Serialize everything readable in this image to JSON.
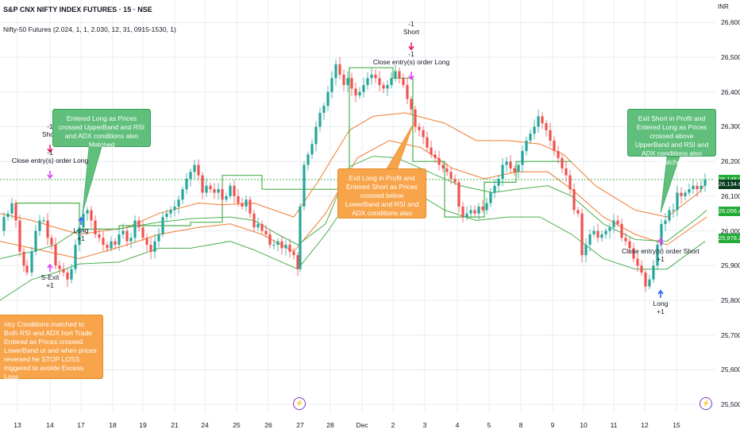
{
  "header": {
    "title": "S&P CNX NIFTY INDEX FUTURES · 15 · NSE",
    "indicator": "Nifty-50 Futures (2.024, 1, 1, 2.030, 12, 31, 0915-1530, 1)",
    "currency": "INR"
  },
  "chart_data": {
    "type": "candlestick",
    "y_axis": {
      "ticks": [
        "26,600.00",
        "26,500.00",
        "26,400.00",
        "26,300.00",
        "26,200.00",
        "26,100.00",
        "26,000.00",
        "25,900.00",
        "25,800.00",
        "25,700.00",
        "25,600.00",
        "25,500.00"
      ],
      "ylim": [
        25475,
        26665
      ]
    },
    "x_axis": {
      "ticks": [
        "13",
        "14",
        "17",
        "18",
        "19",
        "21",
        "24",
        "25",
        "26",
        "27",
        "28",
        "Dec",
        "2",
        "3",
        "4",
        "5",
        "8",
        "9",
        "10",
        "11",
        "12",
        "15"
      ]
    },
    "price_labels": [
      "26,148.00",
      "26,134.66",
      "26,056.45",
      "25,978.24"
    ],
    "price_series": [
      [
        0,
        26000
      ],
      [
        5,
        26040
      ],
      [
        10,
        26050
      ],
      [
        15,
        26080
      ],
      [
        20,
        26030
      ],
      [
        25,
        25940
      ],
      [
        30,
        25900
      ],
      [
        34,
        25880
      ],
      [
        40,
        25940
      ],
      [
        45,
        26000
      ],
      [
        50,
        26030
      ],
      [
        55,
        26030
      ],
      [
        60,
        25980
      ],
      [
        65,
        25960
      ],
      [
        70,
        25900
      ],
      [
        75,
        25890
      ],
      [
        80,
        25880
      ],
      [
        85,
        25860
      ],
      [
        90,
        25890
      ],
      [
        95,
        25960
      ],
      [
        100,
        26010
      ],
      [
        105,
        26050
      ],
      [
        110,
        26060
      ],
      [
        115,
        26030
      ],
      [
        120,
        25990
      ],
      [
        125,
        25980
      ],
      [
        130,
        25960
      ],
      [
        135,
        25950
      ],
      [
        140,
        25970
      ],
      [
        145,
        25960
      ],
      [
        150,
        25990
      ],
      [
        155,
        26000
      ],
      [
        160,
        25970
      ],
      [
        165,
        25980
      ],
      [
        170,
        26030
      ],
      [
        175,
        26010
      ],
      [
        180,
        25980
      ],
      [
        185,
        25960
      ],
      [
        190,
        25940
      ],
      [
        195,
        25970
      ],
      [
        200,
        25990
      ],
      [
        205,
        26040
      ],
      [
        210,
        26050
      ],
      [
        215,
        26060
      ],
      [
        220,
        26070
      ],
      [
        225,
        26090
      ],
      [
        230,
        26120
      ],
      [
        235,
        26150
      ],
      [
        240,
        26170
      ],
      [
        245,
        26190
      ],
      [
        250,
        26160
      ],
      [
        255,
        26110
      ],
      [
        260,
        26130
      ],
      [
        265,
        26120
      ],
      [
        270,
        26110
      ],
      [
        275,
        26120
      ],
      [
        280,
        26090
      ],
      [
        285,
        26100
      ],
      [
        290,
        26130
      ],
      [
        295,
        26100
      ],
      [
        300,
        26080
      ],
      [
        305,
        26070
      ],
      [
        310,
        26090
      ],
      [
        315,
        26050
      ],
      [
        320,
        26010
      ],
      [
        325,
        26020
      ],
      [
        330,
        26000
      ],
      [
        335,
        25990
      ],
      [
        340,
        25960
      ],
      [
        345,
        25960
      ],
      [
        350,
        25970
      ],
      [
        355,
        25950
      ],
      [
        360,
        25960
      ],
      [
        365,
        25940
      ],
      [
        370,
        25930
      ],
      [
        375,
        25890
      ],
      [
        378,
        26070
      ],
      [
        383,
        26190
      ],
      [
        388,
        26220
      ],
      [
        393,
        26250
      ],
      [
        398,
        26300
      ],
      [
        403,
        26340
      ],
      [
        408,
        26360
      ],
      [
        413,
        26400
      ],
      [
        418,
        26440
      ],
      [
        423,
        26480
      ],
      [
        428,
        26450
      ],
      [
        433,
        26420
      ],
      [
        438,
        26440
      ],
      [
        443,
        26410
      ],
      [
        448,
        26390
      ],
      [
        453,
        26400
      ],
      [
        458,
        26420
      ],
      [
        463,
        26440
      ],
      [
        468,
        26450
      ],
      [
        473,
        26440
      ],
      [
        478,
        26420
      ],
      [
        483,
        26410
      ],
      [
        488,
        26420
      ],
      [
        493,
        26440
      ],
      [
        498,
        26460
      ],
      [
        503,
        26440
      ],
      [
        508,
        26420
      ],
      [
        513,
        26380
      ],
      [
        518,
        26350
      ],
      [
        523,
        26300
      ],
      [
        528,
        26290
      ],
      [
        533,
        26270
      ],
      [
        538,
        26240
      ],
      [
        543,
        26220
      ],
      [
        548,
        26210
      ],
      [
        553,
        26190
      ],
      [
        558,
        26180
      ],
      [
        563,
        26170
      ],
      [
        568,
        26150
      ],
      [
        573,
        26140
      ],
      [
        578,
        26070
      ],
      [
        583,
        26040
      ],
      [
        588,
        26050
      ],
      [
        593,
        26060
      ],
      [
        598,
        26050
      ],
      [
        603,
        26070
      ],
      [
        608,
        26060
      ],
      [
        613,
        26080
      ],
      [
        618,
        26110
      ],
      [
        623,
        26130
      ],
      [
        628,
        26150
      ],
      [
        633,
        26190
      ],
      [
        638,
        26200
      ],
      [
        643,
        26180
      ],
      [
        648,
        26170
      ],
      [
        653,
        26190
      ],
      [
        658,
        26230
      ],
      [
        663,
        26260
      ],
      [
        668,
        26280
      ],
      [
        673,
        26300
      ],
      [
        678,
        26330
      ],
      [
        683,
        26310
      ],
      [
        688,
        26290
      ],
      [
        693,
        26260
      ],
      [
        698,
        26230
      ],
      [
        703,
        26210
      ],
      [
        708,
        26180
      ],
      [
        713,
        26160
      ],
      [
        718,
        26120
      ],
      [
        723,
        26060
      ],
      [
        728,
        26050
      ],
      [
        733,
        25930
      ],
      [
        738,
        25960
      ],
      [
        743,
        25990
      ],
      [
        748,
        26000
      ],
      [
        753,
        25980
      ],
      [
        758,
        25990
      ],
      [
        763,
        26000
      ],
      [
        768,
        26010
      ],
      [
        773,
        26030
      ],
      [
        778,
        26020
      ],
      [
        783,
        25980
      ],
      [
        788,
        25970
      ],
      [
        793,
        25950
      ],
      [
        798,
        25920
      ],
      [
        803,
        25900
      ],
      [
        808,
        25880
      ],
      [
        813,
        25840
      ],
      [
        818,
        25860
      ],
      [
        823,
        25900
      ],
      [
        828,
        25960
      ],
      [
        833,
        26020
      ],
      [
        838,
        26030
      ],
      [
        843,
        26060
      ],
      [
        848,
        26060
      ],
      [
        853,
        26110
      ],
      [
        858,
        26100
      ],
      [
        863,
        26110
      ],
      [
        868,
        26120
      ],
      [
        873,
        26130
      ],
      [
        878,
        26120
      ],
      [
        883,
        26130
      ],
      [
        888,
        26148
      ]
    ],
    "bands": {
      "upper_orange": [
        [
          0,
          26050
        ],
        [
          40,
          26030
        ],
        [
          100,
          25990
        ],
        [
          160,
          26010
        ],
        [
          200,
          26050
        ],
        [
          250,
          26080
        ],
        [
          280,
          26075
        ],
        [
          320,
          26080
        ],
        [
          370,
          26040
        ],
        [
          400,
          26140
        ],
        [
          440,
          26290
        ],
        [
          470,
          26330
        ],
        [
          510,
          26340
        ],
        [
          560,
          26310
        ],
        [
          600,
          26260
        ],
        [
          640,
          26260
        ],
        [
          680,
          26250
        ],
        [
          710,
          26220
        ],
        [
          750,
          26130
        ],
        [
          800,
          26060
        ],
        [
          840,
          26040
        ],
        [
          880,
          26110
        ],
        [
          890,
          26140
        ]
      ],
      "lower_orange": [
        [
          0,
          25970
        ],
        [
          40,
          25950
        ],
        [
          100,
          25920
        ],
        [
          160,
          25960
        ],
        [
          200,
          25990
        ],
        [
          250,
          26010
        ],
        [
          290,
          26020
        ],
        [
          330,
          25990
        ],
        [
          370,
          25940
        ],
        [
          410,
          26050
        ],
        [
          450,
          26210
        ],
        [
          490,
          26260
        ],
        [
          530,
          26240
        ],
        [
          570,
          26180
        ],
        [
          610,
          26150
        ],
        [
          650,
          26170
        ],
        [
          690,
          26170
        ],
        [
          720,
          26120
        ],
        [
          760,
          26040
        ],
        [
          800,
          25990
        ],
        [
          840,
          25960
        ],
        [
          890,
          26040
        ]
      ],
      "upper_green": [
        [
          0,
          25920
        ],
        [
          40,
          25940
        ],
        [
          70,
          25960
        ],
        [
          100,
          26005
        ],
        [
          150,
          26005
        ],
        [
          160,
          26010
        ],
        [
          200,
          26025
        ],
        [
          240,
          26035
        ],
        [
          290,
          26040
        ],
        [
          320,
          26030
        ],
        [
          350,
          25990
        ],
        [
          375,
          25960
        ],
        [
          410,
          26020
        ],
        [
          440,
          26185
        ],
        [
          470,
          26215
        ],
        [
          500,
          26210
        ],
        [
          540,
          26170
        ],
        [
          580,
          26130
        ],
        [
          620,
          26110
        ],
        [
          650,
          26120
        ],
        [
          690,
          26130
        ],
        [
          720,
          26100
        ],
        [
          760,
          26020
        ],
        [
          800,
          25975
        ],
        [
          840,
          25970
        ],
        [
          880,
          26040
        ],
        [
          890,
          26060
        ]
      ],
      "lower_green": [
        [
          0,
          25800
        ],
        [
          40,
          25860
        ],
        [
          70,
          25880
        ],
        [
          100,
          25905
        ],
        [
          150,
          25910
        ],
        [
          200,
          25950
        ],
        [
          240,
          25950
        ],
        [
          290,
          25970
        ],
        [
          320,
          25945
        ],
        [
          350,
          25915
        ],
        [
          375,
          25890
        ],
        [
          410,
          25990
        ],
        [
          440,
          26090
        ],
        [
          480,
          26115
        ],
        [
          520,
          26115
        ],
        [
          560,
          26060
        ],
        [
          600,
          26030
        ],
        [
          640,
          26040
        ],
        [
          680,
          26040
        ],
        [
          720,
          25990
        ],
        [
          760,
          25920
        ],
        [
          800,
          25890
        ],
        [
          840,
          25890
        ],
        [
          888,
          25970
        ]
      ],
      "step_green": [
        [
          20,
          26080
        ],
        [
          100,
          26080
        ],
        [
          100,
          26005
        ],
        [
          150,
          26005
        ],
        [
          150,
          26015
        ],
        [
          240,
          26015
        ],
        [
          240,
          26025
        ],
        [
          280,
          26025
        ],
        [
          280,
          26160
        ],
        [
          330,
          26160
        ],
        [
          330,
          26120
        ],
        [
          440,
          26120
        ],
        [
          440,
          26470
        ],
        [
          495,
          26470
        ],
        [
          495,
          26440
        ],
        [
          520,
          26440
        ],
        [
          520,
          26200
        ],
        [
          560,
          26200
        ],
        [
          560,
          26040
        ],
        [
          610,
          26040
        ],
        [
          610,
          26140
        ],
        [
          650,
          26140
        ],
        [
          650,
          26200
        ],
        [
          700,
          26200
        ],
        [
          700,
          26200
        ],
        [
          720,
          26200
        ]
      ]
    },
    "signals": [
      {
        "label1": "-1",
        "label2": "Short",
        "dir": "down",
        "t": 63,
        "p": 26225
      },
      {
        "label1": "-1",
        "label2": "Close entry(s) order Long",
        "dir": "down",
        "t": 63,
        "p": 26150
      },
      {
        "label1": "S-Exit",
        "label2": "+1",
        "dir": "up",
        "t": 63,
        "p": 25905
      },
      {
        "label1": "Long",
        "label2": "+1",
        "dir": "up",
        "t": 102,
        "p": 26040
      },
      {
        "label1": "-1",
        "label2": "Short",
        "dir": "down",
        "t": 518,
        "p": 26520
      },
      {
        "label1": "-1",
        "label2": "Close entry(s) order Long",
        "dir": "down",
        "t": 518,
        "p": 26435
      },
      {
        "label1": "Close entry(s) order Short",
        "label2": "+1",
        "dir": "up",
        "t": 832,
        "p": 25980
      },
      {
        "label1": "Long",
        "label2": "+1",
        "dir": "up",
        "t": 832,
        "p": 25830
      }
    ],
    "annotations": [
      "Entered Long as Prices crossed UpperBand and RSI and ADX conditions also Matched",
      "Exit Long in Profit and Entered Short as Prices crossed below LowerBand and RSI and ADX conditions also Matched",
      "Exit Short in Profit and Entered Long as Prices crossed above UpperBand and RSI and ADX conditions also Matched",
      "ntry Conditions matched to Both RSI and ADX hort Trade Entered as Prices crossed LowerBand ut and when prices reversed he STOP LOSS triggered to avoide Excess Loss"
    ],
    "events": [
      "⚡",
      "⚡"
    ]
  },
  "colors": {
    "up": "#26a69a",
    "down": "#ef5350",
    "orange_band": "#f07c2e",
    "green_band": "#4caf50",
    "grid": "#e9ecf2",
    "signal_down": "#e91e63",
    "signal_up": "#2962ff",
    "signal_exit": "#e040fb"
  }
}
